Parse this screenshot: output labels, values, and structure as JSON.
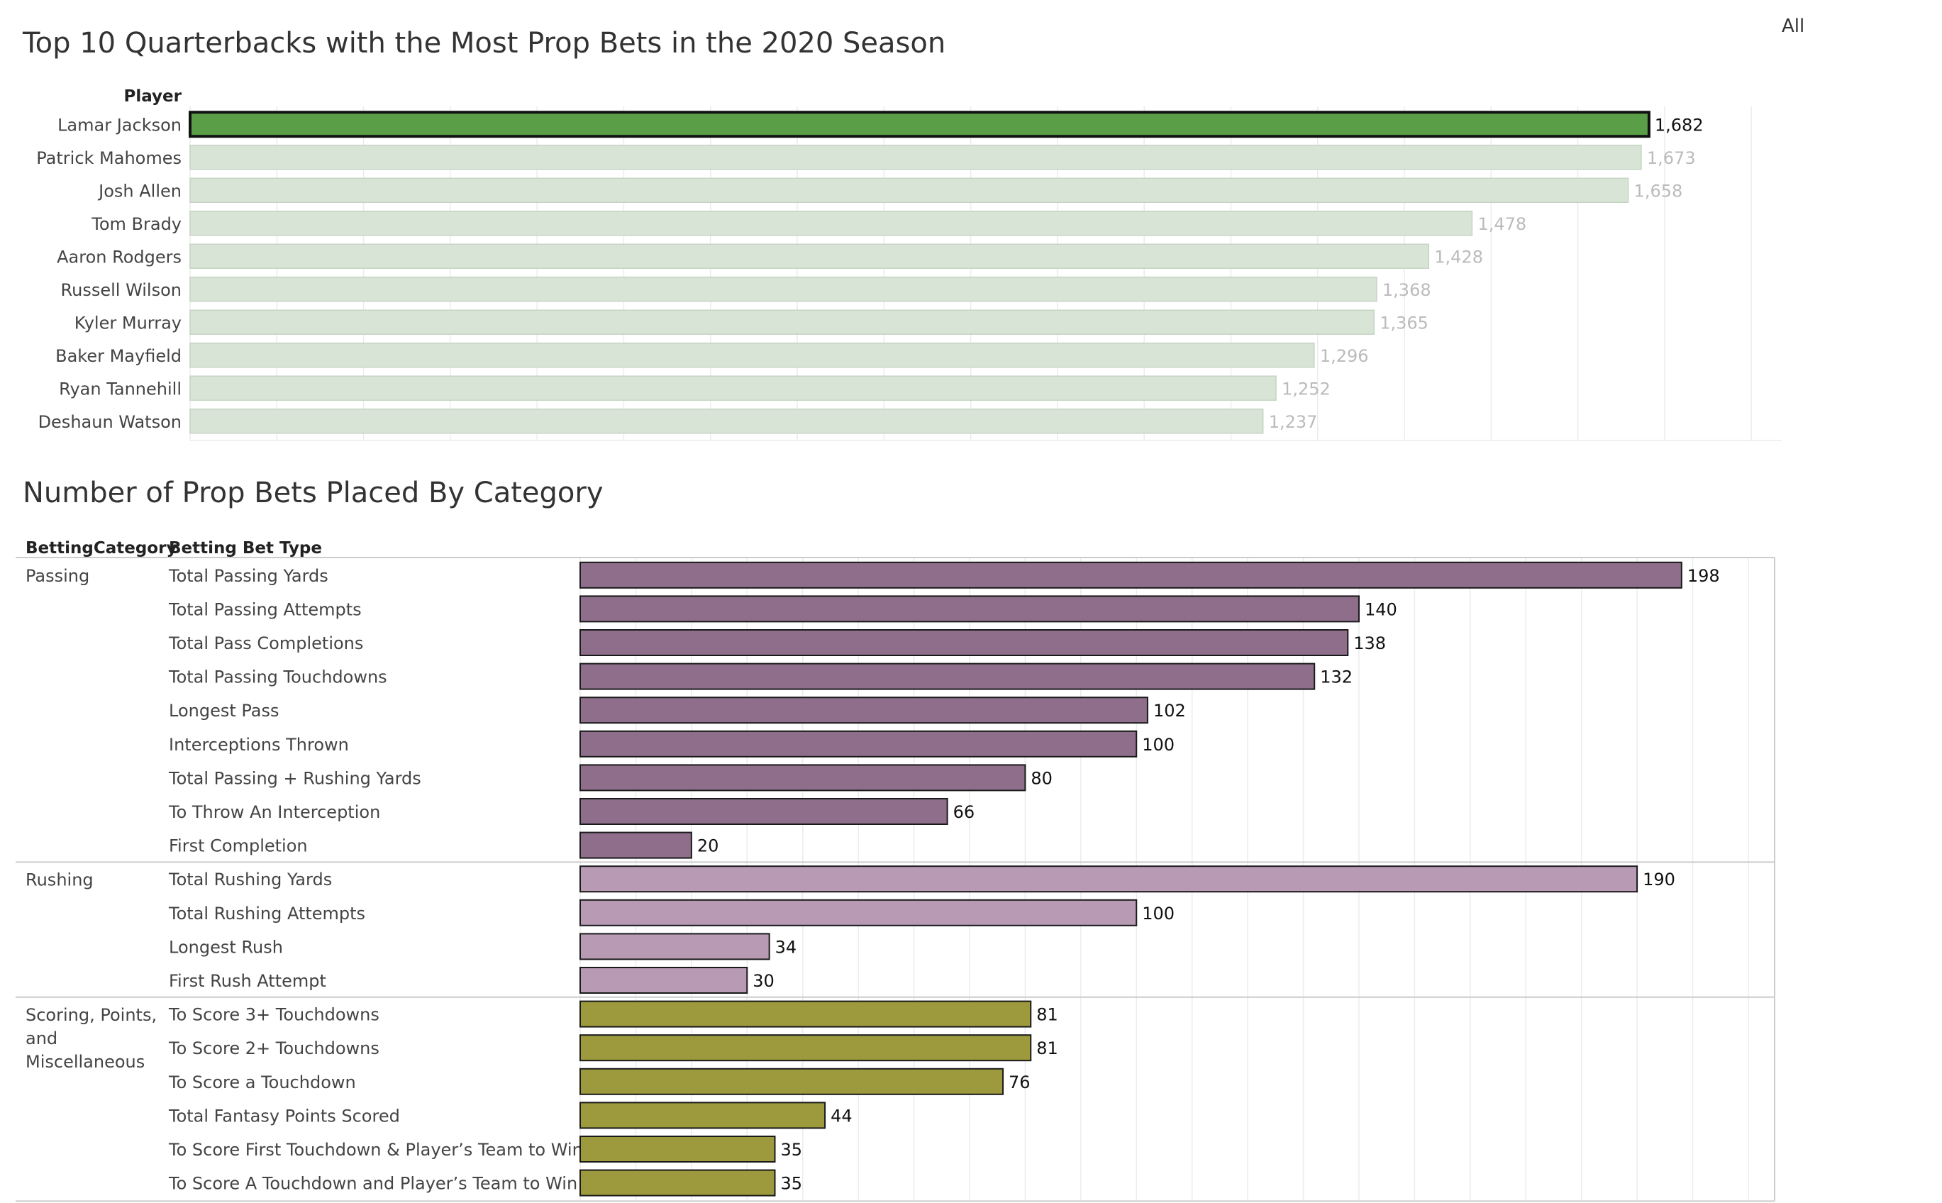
{
  "filter": {
    "label": "All"
  },
  "colors": {
    "highlight_bar": "#5a9e48",
    "faded_bar": "#d8e5d6",
    "passing": "#8e6e8b",
    "rushing": "#b99ab5",
    "scoring": "#9c9a3c",
    "grid": "#ececec"
  },
  "chart_data": [
    {
      "type": "bar",
      "orientation": "horizontal",
      "title": "Top 10 Quarterbacks with the Most Prop Bets in the 2020 Season",
      "row_header": "Player",
      "categories": [
        "Lamar Jackson",
        "Patrick Mahomes",
        "Josh Allen",
        "Tom Brady",
        "Aaron Rodgers",
        "Russell Wilson",
        "Kyler Murray",
        "Baker Mayfield",
        "Ryan Tannehill",
        "Deshaun Watson"
      ],
      "values": [
        1682,
        1673,
        1658,
        1478,
        1428,
        1368,
        1365,
        1296,
        1252,
        1237
      ],
      "value_labels": [
        "1,682",
        "1,673",
        "1,658",
        "1,478",
        "1,428",
        "1,368",
        "1,365",
        "1,296",
        "1,252",
        "1,237"
      ],
      "highlighted": "Lamar Jackson",
      "xlim": [
        0,
        1835
      ],
      "grid": true
    },
    {
      "type": "bar",
      "orientation": "horizontal",
      "title": "Number of Prop Bets Placed By Category",
      "row_headers": [
        "BettingCategory",
        "Betting Bet Type"
      ],
      "xlim": [
        0,
        216
      ],
      "grid": true,
      "groups": [
        {
          "category": "Passing",
          "category_lines": [
            "Passing"
          ],
          "color_key": "passing",
          "items": [
            {
              "label": "Total Passing Yards",
              "value": 198
            },
            {
              "label": "Total Passing Attempts",
              "value": 140
            },
            {
              "label": "Total Pass Completions",
              "value": 138
            },
            {
              "label": "Total Passing Touchdowns",
              "value": 132
            },
            {
              "label": "Longest Pass",
              "value": 102
            },
            {
              "label": "Interceptions Thrown",
              "value": 100
            },
            {
              "label": "Total Passing + Rushing Yards",
              "value": 80
            },
            {
              "label": "To Throw An Interception",
              "value": 66
            },
            {
              "label": "First Completion",
              "value": 20
            }
          ]
        },
        {
          "category": "Rushing",
          "category_lines": [
            "Rushing"
          ],
          "color_key": "rushing",
          "items": [
            {
              "label": "Total Rushing Yards",
              "value": 190
            },
            {
              "label": "Total Rushing Attempts",
              "value": 100
            },
            {
              "label": "Longest Rush",
              "value": 34
            },
            {
              "label": "First Rush Attempt",
              "value": 30
            }
          ]
        },
        {
          "category": "Scoring, Points, and Miscellaneous",
          "category_lines": [
            "Scoring, Points,",
            "and",
            "Miscellaneous"
          ],
          "color_key": "scoring",
          "items": [
            {
              "label": "To Score 3+ Touchdowns",
              "value": 81
            },
            {
              "label": "To Score 2+ Touchdowns",
              "value": 81
            },
            {
              "label": "To Score a Touchdown",
              "value": 76
            },
            {
              "label": "Total Fantasy Points Scored",
              "value": 44
            },
            {
              "label": "To Score First Touchdown & Player’s Team to Win",
              "value": 35
            },
            {
              "label": "To Score A Touchdown and Player’s Team to Win",
              "value": 35
            }
          ]
        }
      ]
    }
  ]
}
